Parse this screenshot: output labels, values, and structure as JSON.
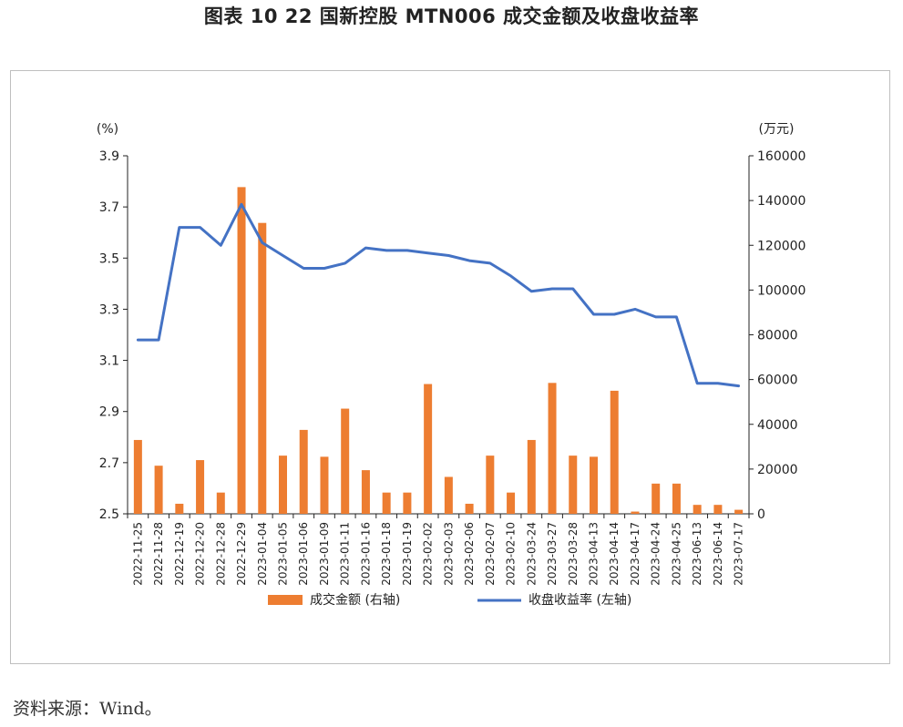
{
  "title": "图表 10  22 国新控股 MTN006 成交金额及收盘收益率",
  "source": "资料来源：Wind。",
  "chart_data": {
    "type": "bar+line",
    "left_axis": {
      "unit": "(%)",
      "min": 2.5,
      "max": 3.9,
      "ticks": [
        "2.5",
        "2.7",
        "2.9",
        "3.1",
        "3.3",
        "3.5",
        "3.7",
        "3.9"
      ]
    },
    "right_axis": {
      "unit": "(万元)",
      "min": 0,
      "max": 160000,
      "ticks": [
        "0",
        "20000",
        "40000",
        "60000",
        "80000",
        "100000",
        "120000",
        "140000",
        "160000"
      ]
    },
    "categories": [
      "2022-11-25",
      "2022-11-28",
      "2022-12-19",
      "2022-12-20",
      "2022-12-28",
      "2022-12-29",
      "2023-01-04",
      "2023-01-05",
      "2023-01-06",
      "2023-01-09",
      "2023-01-11",
      "2023-01-16",
      "2023-01-18",
      "2023-01-19",
      "2023-02-02",
      "2023-02-03",
      "2023-02-06",
      "2023-02-07",
      "2023-02-10",
      "2023-03-24",
      "2023-03-27",
      "2023-03-28",
      "2023-04-13",
      "2023-04-14",
      "2023-04-17",
      "2023-04-24",
      "2023-04-25",
      "2023-06-13",
      "2023-06-14",
      "2023-07-17"
    ],
    "series": [
      {
        "name": "成交金额 (右轴)",
        "axis": "right",
        "kind": "bar",
        "color": "#ED7D31",
        "values": [
          33000,
          21500,
          4500,
          24000,
          9500,
          146000,
          130000,
          26000,
          37500,
          25500,
          47000,
          19500,
          9500,
          9500,
          58000,
          16500,
          4500,
          26000,
          9500,
          33000,
          58500,
          26000,
          25500,
          55000,
          1000,
          13500,
          13500,
          4000,
          4000,
          1800
        ]
      },
      {
        "name": "收盘收益率 (左轴)",
        "axis": "left",
        "kind": "line",
        "color": "#4472C4",
        "values": [
          3.18,
          3.18,
          3.62,
          3.62,
          3.55,
          3.71,
          3.56,
          3.51,
          3.46,
          3.46,
          3.48,
          3.54,
          3.53,
          3.53,
          3.52,
          3.51,
          3.49,
          3.48,
          3.43,
          3.37,
          3.38,
          3.38,
          3.28,
          3.28,
          3.3,
          3.27,
          3.27,
          3.01,
          3.01,
          3.0
        ]
      }
    ]
  }
}
